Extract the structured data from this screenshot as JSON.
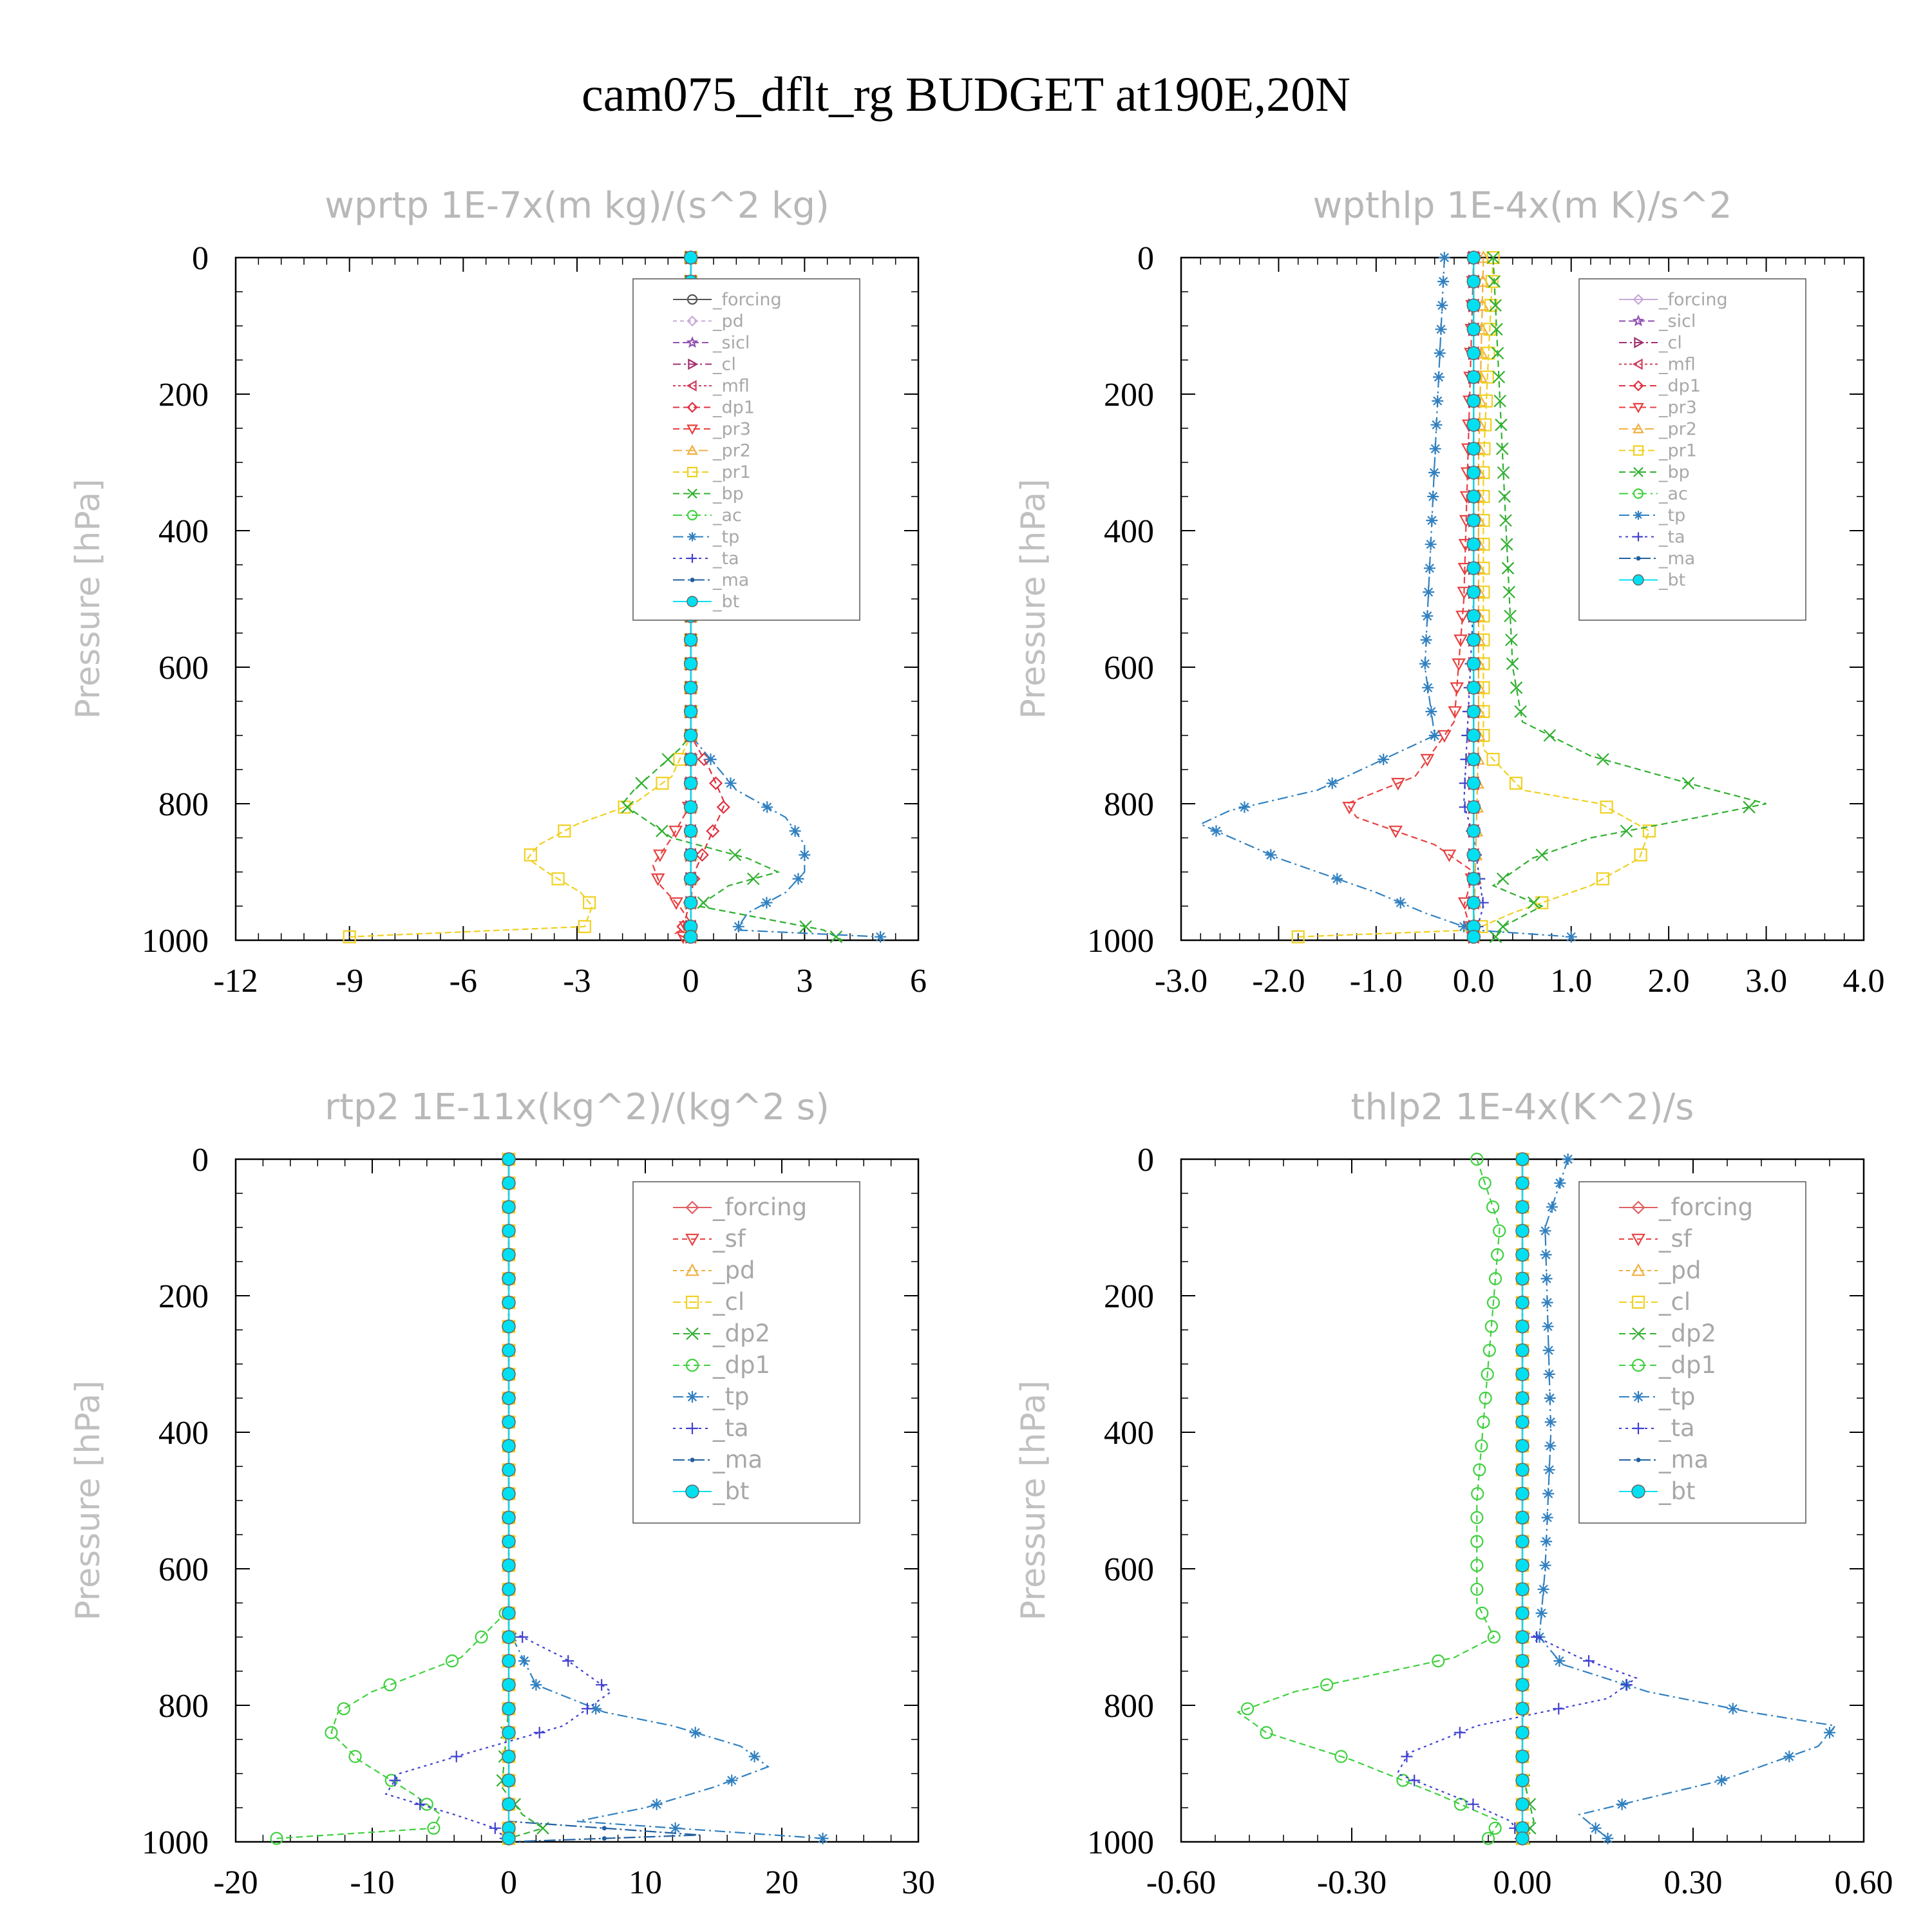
{
  "figure": {
    "title": "cam075_dflt_rg  BUDGET at190E,20N"
  },
  "colors": {
    "forcing": "#555555",
    "pd": "#c8a8d8",
    "sicl": "#9050b0",
    "cl": "#a03070",
    "mfl": "#d04060",
    "dp1": "#e03040",
    "pr3": "#e84040",
    "pr2": "#f0b040",
    "pr1": "#f0d020",
    "bp": "#30b030",
    "ac": "#40d040",
    "tp": "#3080c0",
    "ta": "#4040d0",
    "ma": "#2060a0",
    "bt": "#00e0f0"
  },
  "chart_data": [
    {
      "type": "line",
      "title": "wprtp   1E-7x(m kg)/(s^2 kg)",
      "xlabel": "",
      "ylabel": "Pressure [hPa]",
      "xlim": [
        -12,
        6
      ],
      "xticks": [
        -12,
        -9,
        -6,
        -3,
        0,
        3,
        6
      ],
      "ylim": [
        1000,
        0
      ],
      "yticks": [
        0,
        200,
        400,
        600,
        800,
        1000
      ],
      "grid": false,
      "legend_position": "top-right",
      "series": [
        {
          "name": "_forcing",
          "color": "#555555",
          "marker": "circle",
          "x": [
            0,
            0
          ],
          "y": [
            0,
            1000
          ]
        },
        {
          "name": "_pd",
          "color": "#c8a8d8",
          "marker": "diamond",
          "x": [
            0,
            0
          ],
          "y": [
            0,
            1000
          ]
        },
        {
          "name": "_sicl",
          "color": "#9050b0",
          "marker": "star",
          "x": [
            0,
            0
          ],
          "y": [
            0,
            1000
          ]
        },
        {
          "name": "_cl",
          "color": "#a03070",
          "marker": "tri-right",
          "x": [
            0,
            0
          ],
          "y": [
            0,
            1000
          ]
        },
        {
          "name": "_mfl",
          "color": "#d04060",
          "marker": "tri-left",
          "x": [
            0,
            0
          ],
          "y": [
            0,
            1000
          ]
        },
        {
          "name": "_dp1",
          "color": "#e03040",
          "marker": "diamond",
          "x": [
            0,
            0,
            0,
            0.5,
            0.9,
            0.5,
            0.1,
            0,
            -0.2,
            0
          ],
          "y": [
            0,
            600,
            700,
            750,
            800,
            850,
            900,
            940,
            980,
            1000
          ]
        },
        {
          "name": "_pr3",
          "color": "#e84040",
          "marker": "tri-down",
          "x": [
            0,
            0,
            0,
            -0.5,
            -1.0,
            -0.8,
            -0.3,
            0,
            -0.4,
            0
          ],
          "y": [
            0,
            700,
            800,
            850,
            890,
            920,
            950,
            975,
            990,
            1000
          ]
        },
        {
          "name": "_pr2",
          "color": "#f0b040",
          "marker": "tri-up",
          "x": [
            0,
            0,
            0,
            0,
            0
          ],
          "y": [
            0,
            700,
            850,
            950,
            1000
          ]
        },
        {
          "name": "_pr1",
          "color": "#f0d020",
          "marker": "square",
          "x": [
            0,
            0,
            -0.5,
            -1.5,
            -3.0,
            -4.0,
            -4.3,
            -3.8,
            -2.9,
            -2.6,
            -2.8,
            -9.0
          ],
          "y": [
            0,
            700,
            760,
            800,
            830,
            860,
            880,
            900,
            930,
            950,
            980,
            995
          ]
        },
        {
          "name": "_bp",
          "color": "#30b030",
          "marker": "x",
          "x": [
            0,
            0,
            -0.3,
            -1.5,
            -1.8,
            -0.5,
            1.5,
            2.3,
            1.0,
            0.2,
            3.5,
            4.0
          ],
          "y": [
            0,
            700,
            720,
            780,
            800,
            850,
            880,
            900,
            920,
            950,
            985,
            1000
          ]
        },
        {
          "name": "_ac",
          "color": "#40d040",
          "marker": "circle",
          "x": [
            0,
            0
          ],
          "y": [
            0,
            1000
          ]
        },
        {
          "name": "_tp",
          "color": "#3080c0",
          "marker": "asterisk",
          "x": [
            0,
            0,
            1.2,
            2.5,
            3.0,
            3.0,
            2.5,
            1.5,
            1.2,
            5.0
          ],
          "y": [
            0,
            700,
            780,
            820,
            860,
            900,
            930,
            960,
            985,
            995
          ]
        },
        {
          "name": "_ta",
          "color": "#4040d0",
          "marker": "plus",
          "x": [
            0,
            0
          ],
          "y": [
            0,
            1000
          ]
        },
        {
          "name": "_ma",
          "color": "#2060a0",
          "marker": "dot",
          "x": [
            0,
            0
          ],
          "y": [
            0,
            1000
          ]
        },
        {
          "name": "_bt",
          "color": "#00e0f0",
          "marker": "filled",
          "x": [
            0,
            0
          ],
          "y": [
            0,
            1000
          ]
        }
      ]
    },
    {
      "type": "line",
      "title": "wpthlp   1E-4x(m K)/s^2",
      "xlabel": "",
      "ylabel": "Pressure [hPa]",
      "xlim": [
        -3.0,
        4.0
      ],
      "xticks": [
        -3.0,
        -2.0,
        -1.0,
        0.0,
        1.0,
        2.0,
        3.0,
        4.0
      ],
      "ylim": [
        1000,
        0
      ],
      "yticks": [
        0,
        200,
        400,
        600,
        800,
        1000
      ],
      "grid": false,
      "legend_position": "top-right",
      "series": [
        {
          "name": "_forcing",
          "color": "#c8a8d8",
          "marker": "diamond",
          "x": [
            0,
            0
          ],
          "y": [
            0,
            1000
          ]
        },
        {
          "name": "_sicl",
          "color": "#9050b0",
          "marker": "star",
          "x": [
            0,
            0
          ],
          "y": [
            0,
            1000
          ]
        },
        {
          "name": "_cl",
          "color": "#a03070",
          "marker": "tri-right",
          "x": [
            0,
            0
          ],
          "y": [
            0,
            1000
          ]
        },
        {
          "name": "_mfl",
          "color": "#d04060",
          "marker": "tri-left",
          "x": [
            0,
            0
          ],
          "y": [
            0,
            1000
          ]
        },
        {
          "name": "_dp1",
          "color": "#e03040",
          "marker": "diamond",
          "x": [
            0,
            0,
            0,
            0
          ],
          "y": [
            0,
            500,
            900,
            1000
          ]
        },
        {
          "name": "_pr3",
          "color": "#e84040",
          "marker": "tri-down",
          "x": [
            0,
            -0.1,
            -0.2,
            -0.6,
            -1.3,
            -1.2,
            -0.4,
            0,
            -0.1,
            0
          ],
          "y": [
            0,
            500,
            680,
            760,
            800,
            820,
            860,
            900,
            950,
            1000
          ]
        },
        {
          "name": "_pr2",
          "color": "#f0b040",
          "marker": "tri-up",
          "x": [
            0.1,
            0.05,
            0.05,
            0
          ],
          "y": [
            0,
            300,
            700,
            1000
          ]
        },
        {
          "name": "_pr1",
          "color": "#f0d020",
          "marker": "square",
          "x": [
            0.2,
            0.1,
            0.1,
            0.5,
            1.3,
            1.8,
            1.7,
            1.2,
            0.4,
            0,
            -1.8
          ],
          "y": [
            0,
            300,
            720,
            780,
            800,
            840,
            880,
            920,
            960,
            985,
            995
          ]
        },
        {
          "name": "_bp",
          "color": "#30b030",
          "marker": "x",
          "x": [
            0.2,
            0.3,
            0.4,
            0.5,
            1.2,
            2.2,
            3.0,
            2.3,
            1.2,
            0.6,
            0.2,
            0.7,
            0.3,
            0.2
          ],
          "y": [
            0,
            300,
            600,
            680,
            730,
            770,
            800,
            820,
            850,
            880,
            920,
            950,
            980,
            1000
          ]
        },
        {
          "name": "_ac",
          "color": "#40d040",
          "marker": "circle",
          "x": [
            0,
            0
          ],
          "y": [
            0,
            1000
          ]
        },
        {
          "name": "_tp",
          "color": "#3080c0",
          "marker": "asterisk",
          "x": [
            -0.3,
            -0.4,
            -0.5,
            -0.4,
            -1.6,
            -2.5,
            -2.8,
            -2.0,
            -1.0,
            -0.5,
            0,
            1.0
          ],
          "y": [
            0,
            300,
            600,
            700,
            780,
            810,
            830,
            880,
            930,
            960,
            985,
            995
          ]
        },
        {
          "name": "_ta",
          "color": "#4040d0",
          "marker": "plus",
          "x": [
            0,
            0,
            -0.1,
            0,
            0.1,
            0
          ],
          "y": [
            0,
            500,
            800,
            850,
            950,
            1000
          ]
        },
        {
          "name": "_ma",
          "color": "#2060a0",
          "marker": "dot",
          "x": [
            0,
            0
          ],
          "y": [
            0,
            1000
          ]
        },
        {
          "name": "_bt",
          "color": "#00e0f0",
          "marker": "filled",
          "x": [
            0,
            0
          ],
          "y": [
            0,
            1000
          ]
        }
      ]
    },
    {
      "type": "line",
      "title": "rtp2   1E-11x(kg^2)/(kg^2 s)",
      "xlabel": "",
      "ylabel": "Pressure [hPa]",
      "xlim": [
        -20,
        30
      ],
      "xticks": [
        -20,
        -10,
        0,
        10,
        20,
        30
      ],
      "ylim": [
        1000,
        0
      ],
      "yticks": [
        0,
        200,
        400,
        600,
        800,
        1000
      ],
      "grid": false,
      "legend_position": "top-right",
      "series": [
        {
          "name": "_forcing",
          "color": "#e06060",
          "marker": "diamond",
          "x": [
            0,
            0
          ],
          "y": [
            0,
            1000
          ]
        },
        {
          "name": "_sf",
          "color": "#e84040",
          "marker": "tri-down",
          "x": [
            0,
            0
          ],
          "y": [
            0,
            1000
          ]
        },
        {
          "name": "_pd",
          "color": "#f0b040",
          "marker": "tri-up",
          "x": [
            0,
            0
          ],
          "y": [
            0,
            1000
          ]
        },
        {
          "name": "_cl",
          "color": "#f0d020",
          "marker": "square",
          "x": [
            0,
            0
          ],
          "y": [
            0,
            1000
          ]
        },
        {
          "name": "_dp2",
          "color": "#30b030",
          "marker": "x",
          "x": [
            0,
            0,
            -0.5,
            1.0,
            2.5,
            0
          ],
          "y": [
            0,
            800,
            920,
            960,
            980,
            995
          ]
        },
        {
          "name": "_dp1",
          "color": "#40d040",
          "marker": "circle",
          "x": [
            0,
            0,
            -3.5,
            -10,
            -12.5,
            -13,
            -11,
            -7,
            -5,
            -5.5,
            -17
          ],
          "y": [
            0,
            660,
            730,
            780,
            810,
            840,
            880,
            930,
            960,
            980,
            995
          ]
        },
        {
          "name": "_tp",
          "color": "#3080c0",
          "marker": "asterisk",
          "x": [
            0,
            0,
            2,
            7,
            12,
            17,
            19,
            15,
            10,
            5,
            23
          ],
          "y": [
            0,
            690,
            770,
            810,
            830,
            860,
            890,
            920,
            950,
            970,
            995
          ]
        },
        {
          "name": "_ta",
          "color": "#4040d0",
          "marker": "plus",
          "x": [
            0,
            0,
            4,
            7.5,
            4,
            -3,
            -8,
            -9,
            -4,
            -1,
            0
          ],
          "y": [
            0,
            690,
            730,
            780,
            830,
            870,
            900,
            930,
            960,
            980,
            1000
          ]
        },
        {
          "name": "_ma",
          "color": "#2060a0",
          "marker": "dot",
          "x": [
            0,
            0,
            0,
            14,
            0
          ],
          "y": [
            0,
            600,
            970,
            990,
            1000
          ]
        },
        {
          "name": "_bt",
          "color": "#00e0f0",
          "marker": "filled",
          "x": [
            0,
            0
          ],
          "y": [
            0,
            1000
          ]
        }
      ]
    },
    {
      "type": "line",
      "title": "thlp2   1E-4x(K^2)/s",
      "xlabel": "",
      "ylabel": "Pressure [hPa]",
      "xlim": [
        -0.6,
        0.6
      ],
      "xticks": [
        -0.6,
        -0.3,
        0.0,
        0.3,
        0.6
      ],
      "ylim": [
        1000,
        0
      ],
      "yticks": [
        0,
        200,
        400,
        600,
        800,
        1000
      ],
      "grid": false,
      "legend_position": "top-right",
      "series": [
        {
          "name": "_forcing",
          "color": "#e06060",
          "marker": "diamond",
          "x": [
            0,
            0
          ],
          "y": [
            0,
            1000
          ]
        },
        {
          "name": "_sf",
          "color": "#e84040",
          "marker": "tri-down",
          "x": [
            0,
            0
          ],
          "y": [
            0,
            1000
          ]
        },
        {
          "name": "_pd",
          "color": "#f0b040",
          "marker": "tri-up",
          "x": [
            0,
            0
          ],
          "y": [
            0,
            1000
          ]
        },
        {
          "name": "_cl",
          "color": "#f0d020",
          "marker": "square",
          "x": [
            0,
            0
          ],
          "y": [
            0,
            1000
          ]
        },
        {
          "name": "_dp2",
          "color": "#30b030",
          "marker": "x",
          "x": [
            0,
            0,
            0.02,
            0
          ],
          "y": [
            0,
            900,
            970,
            1000
          ]
        },
        {
          "name": "_dp1",
          "color": "#40d040",
          "marker": "circle",
          "x": [
            -0.08,
            -0.04,
            -0.06,
            -0.08,
            -0.08,
            -0.05,
            -0.12,
            -0.4,
            -0.5,
            -0.45,
            -0.3,
            -0.15,
            -0.04,
            -0.06
          ],
          "y": [
            0,
            100,
            300,
            500,
            650,
            700,
            730,
            780,
            810,
            840,
            880,
            930,
            970,
            995
          ]
        },
        {
          "name": "_tp",
          "color": "#3080c0",
          "marker": "asterisk",
          "x": [
            0.08,
            0.04,
            0.05,
            0.04,
            0.03,
            0.07,
            0.22,
            0.4,
            0.55,
            0.52,
            0.35,
            0.1,
            0.15
          ],
          "y": [
            0,
            100,
            400,
            600,
            700,
            740,
            780,
            810,
            830,
            860,
            910,
            960,
            995
          ]
        },
        {
          "name": "_ta",
          "color": "#4040d0",
          "marker": "plus",
          "x": [
            0,
            0,
            0.1,
            0.2,
            0.15,
            -0.08,
            -0.2,
            -0.22,
            -0.1,
            -0.02,
            0
          ],
          "y": [
            0,
            690,
            730,
            760,
            790,
            830,
            870,
            900,
            940,
            970,
            1000
          ]
        },
        {
          "name": "_ma",
          "color": "#2060a0",
          "marker": "dot",
          "x": [
            0,
            0
          ],
          "y": [
            0,
            1000
          ]
        },
        {
          "name": "_bt",
          "color": "#00e0f0",
          "marker": "filled",
          "x": [
            0,
            0
          ],
          "y": [
            0,
            1000
          ]
        }
      ]
    }
  ]
}
